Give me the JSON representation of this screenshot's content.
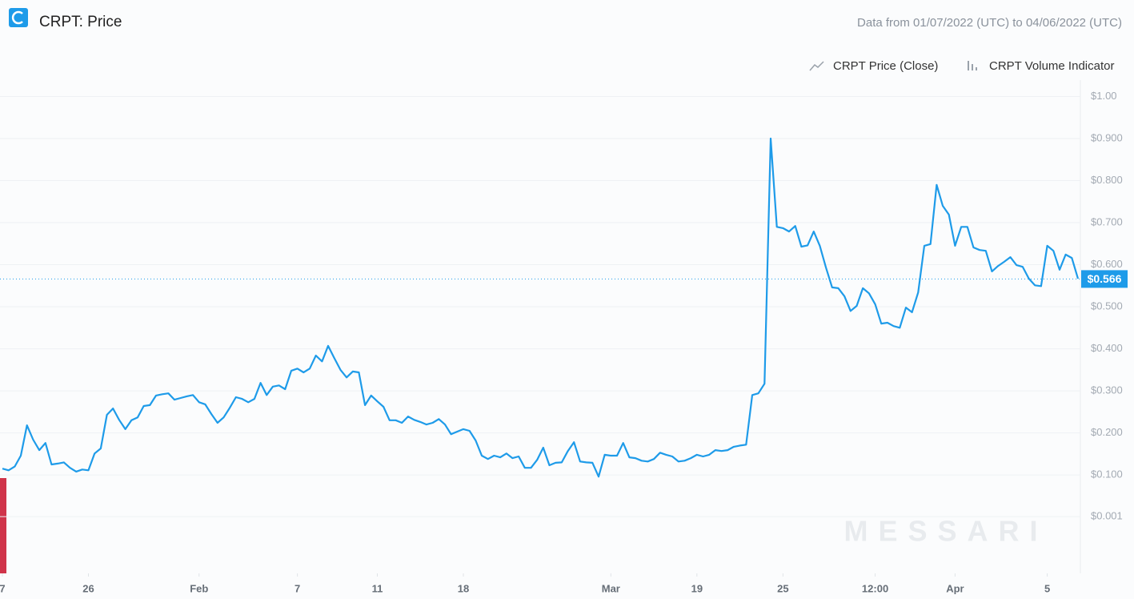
{
  "chart_data": {
    "type": "line",
    "title": "CRPT: Price",
    "subtitle": "Data from 01/07/2022 (UTC) to 04/06/2022 (UTC)",
    "indicators": [
      "CRPT Volume Indicator"
    ],
    "watermark": "MESSARI",
    "series": [
      {
        "name": "CRPT Price (Close)",
        "color": "#1e9be9",
        "values": [
          0.115,
          0.111,
          0.12,
          0.146,
          0.218,
          0.184,
          0.159,
          0.176,
          0.125,
          0.127,
          0.13,
          0.117,
          0.108,
          0.113,
          0.111,
          0.151,
          0.163,
          0.243,
          0.258,
          0.231,
          0.209,
          0.23,
          0.237,
          0.264,
          0.266,
          0.289,
          0.292,
          0.294,
          0.279,
          0.283,
          0.287,
          0.29,
          0.273,
          0.268,
          0.245,
          0.224,
          0.237,
          0.26,
          0.285,
          0.281,
          0.273,
          0.281,
          0.319,
          0.29,
          0.31,
          0.313,
          0.304,
          0.348,
          0.353,
          0.344,
          0.353,
          0.384,
          0.37,
          0.407,
          0.378,
          0.35,
          0.332,
          0.346,
          0.344,
          0.266,
          0.289,
          0.275,
          0.262,
          0.23,
          0.23,
          0.224,
          0.239,
          0.231,
          0.226,
          0.22,
          0.224,
          0.233,
          0.22,
          0.197,
          0.203,
          0.209,
          0.205,
          0.182,
          0.146,
          0.138,
          0.146,
          0.142,
          0.151,
          0.14,
          0.144,
          0.117,
          0.117,
          0.136,
          0.165,
          0.123,
          0.129,
          0.13,
          0.157,
          0.178,
          0.132,
          0.13,
          0.129,
          0.096,
          0.148,
          0.146,
          0.146,
          0.176,
          0.142,
          0.14,
          0.134,
          0.132,
          0.138,
          0.153,
          0.148,
          0.144,
          0.132,
          0.134,
          0.14,
          0.148,
          0.144,
          0.148,
          0.159,
          0.157,
          0.159,
          0.167,
          0.17,
          0.172,
          0.29,
          0.294,
          0.317,
          0.9,
          0.69,
          0.687,
          0.679,
          0.692,
          0.643,
          0.646,
          0.679,
          0.645,
          0.593,
          0.546,
          0.544,
          0.525,
          0.49,
          0.502,
          0.544,
          0.532,
          0.506,
          0.46,
          0.462,
          0.454,
          0.45,
          0.498,
          0.487,
          0.534,
          0.645,
          0.649,
          0.79,
          0.74,
          0.719,
          0.645,
          0.69,
          0.69,
          0.641,
          0.635,
          0.633,
          0.584,
          0.597,
          0.607,
          0.618,
          0.599,
          0.595,
          0.567,
          0.551,
          0.549,
          0.645,
          0.633,
          0.588,
          0.624,
          0.616,
          0.567
        ]
      }
    ],
    "last_price": {
      "value": 0.566,
      "label": "$0.566"
    },
    "xlim": [
      0,
      175
    ],
    "xticks": [
      {
        "value": 0,
        "label": "7"
      },
      {
        "value": 14,
        "label": "26"
      },
      {
        "value": 32,
        "label": "Feb"
      },
      {
        "value": 48,
        "label": "7"
      },
      {
        "value": 61,
        "label": "11"
      },
      {
        "value": 75,
        "label": "18"
      },
      {
        "value": 99,
        "label": "Mar"
      },
      {
        "value": 113,
        "label": "19"
      },
      {
        "value": 127,
        "label": "25"
      },
      {
        "value": 142,
        "label": "12:00"
      },
      {
        "value": 155,
        "label": "Apr"
      },
      {
        "value": 170,
        "label": "5"
      }
    ],
    "ylim": [
      -0.134,
      1.039
    ],
    "yticks": [
      {
        "value": 0.001,
        "label": "$0.001"
      },
      {
        "value": 0.1,
        "label": "$0.100"
      },
      {
        "value": 0.2,
        "label": "$0.200"
      },
      {
        "value": 0.3,
        "label": "$0.300"
      },
      {
        "value": 0.4,
        "label": "$0.400"
      },
      {
        "value": 0.5,
        "label": "$0.500"
      },
      {
        "value": 0.6,
        "label": "$0.600"
      },
      {
        "value": 0.7,
        "label": "$0.700"
      },
      {
        "value": 0.8,
        "label": "$0.800"
      },
      {
        "value": 0.9,
        "label": "$0.900"
      },
      {
        "value": 1.0,
        "label": "$1.00"
      }
    ],
    "grid": true
  }
}
